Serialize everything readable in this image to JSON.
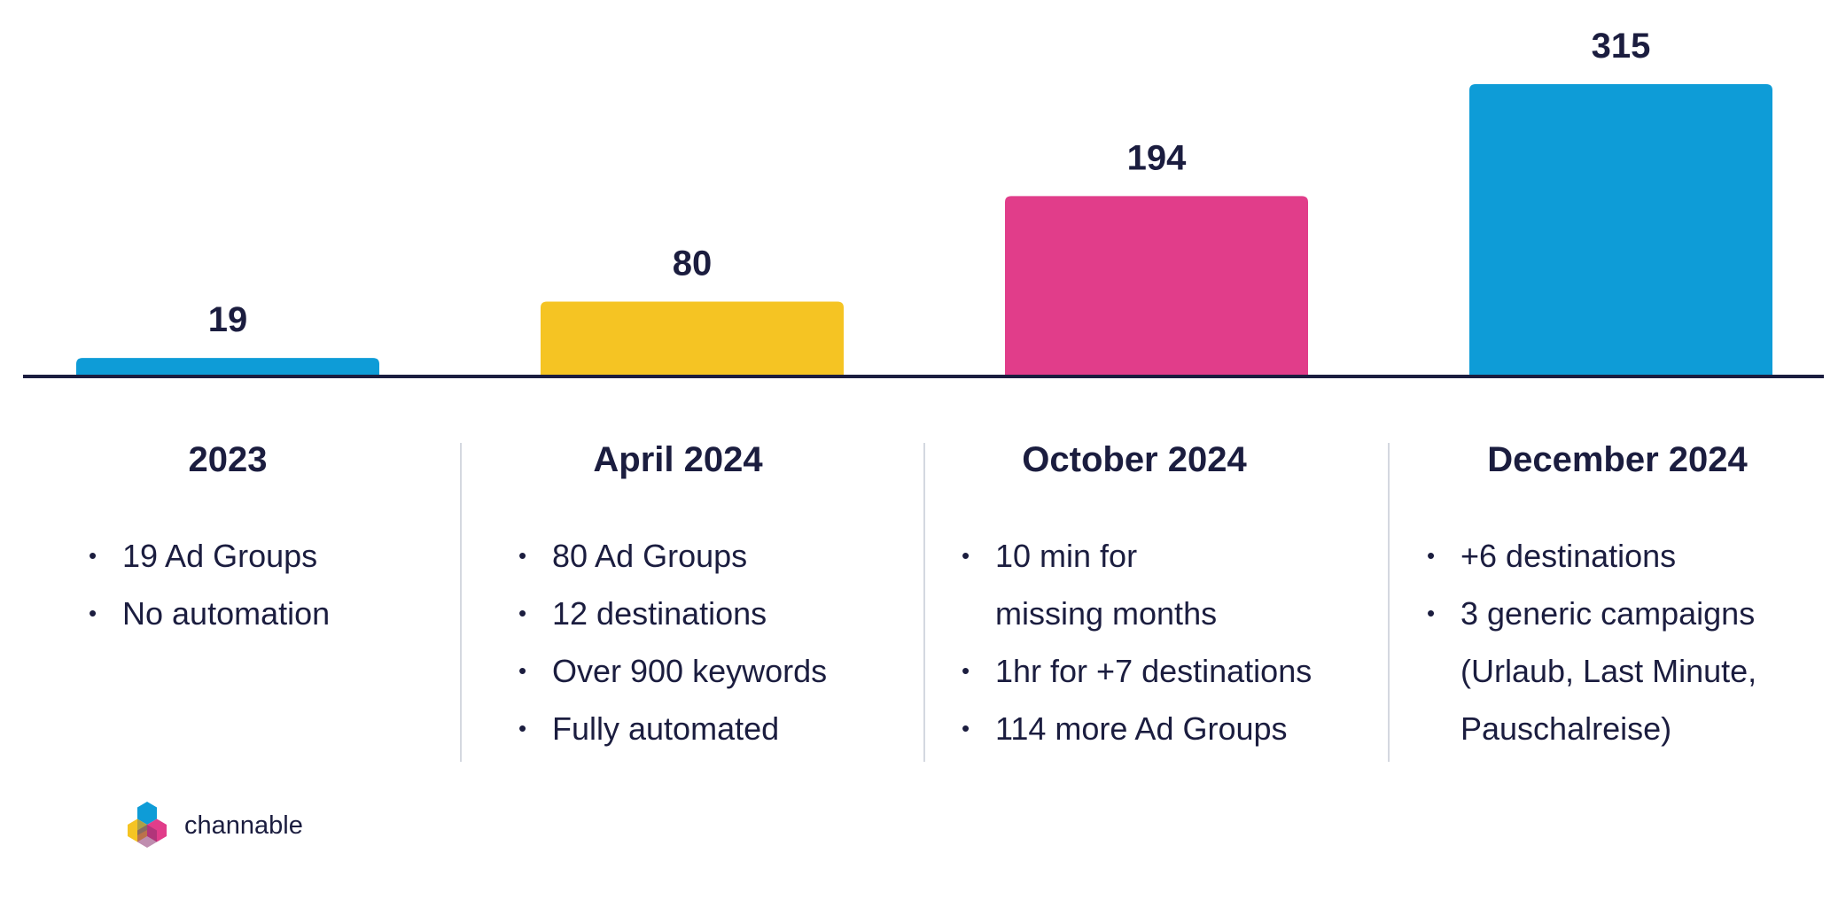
{
  "chart_data": {
    "type": "bar",
    "categories": [
      "2023",
      "April 2024",
      "October 2024",
      "December 2024"
    ],
    "values": [
      19,
      80,
      194,
      315
    ],
    "colors": [
      "#0e9cd7",
      "#f5c423",
      "#e13d8a",
      "#0e9cd7"
    ],
    "title": "",
    "xlabel": "",
    "ylabel": "",
    "ylim": [
      0,
      315
    ],
    "grid": false,
    "legend": "none"
  },
  "columns": [
    {
      "title": "2023",
      "bullets": [
        {
          "text": "19 Ad Groups",
          "bullet": true
        },
        {
          "text": "No automation",
          "bullet": true
        }
      ]
    },
    {
      "title": "April 2024",
      "bullets": [
        {
          "text": "80 Ad Groups",
          "bullet": true
        },
        {
          "text": "12 destinations",
          "bullet": true
        },
        {
          "text": "Over 900 keywords",
          "bullet": true
        },
        {
          "text": "Fully automated",
          "bullet": true
        }
      ]
    },
    {
      "title": "October 2024",
      "bullets": [
        {
          "text": "10 min for",
          "bullet": true
        },
        {
          "text": "missing months",
          "bullet": false
        },
        {
          "text": "1hr for +7 destinations",
          "bullet": true
        },
        {
          "text": "114 more Ad Groups",
          "bullet": true
        }
      ]
    },
    {
      "title": "December 2024",
      "bullets": [
        {
          "text": "+6 destinations",
          "bullet": true
        },
        {
          "text": "3 generic campaigns",
          "bullet": true
        },
        {
          "text": "(Urlaub, Last Minute,",
          "bullet": false
        },
        {
          "text": "Pauschalreise)",
          "bullet": false
        }
      ]
    }
  ],
  "logo": {
    "text": "channable",
    "icon": "channable-hexagon-logo-icon",
    "colors": [
      "#0e9cd7",
      "#f5c423",
      "#e13d8a"
    ]
  },
  "colors": {
    "text": "#1b1d3f",
    "axis": "#1b1d3f",
    "divider": "#d4d8e0"
  }
}
